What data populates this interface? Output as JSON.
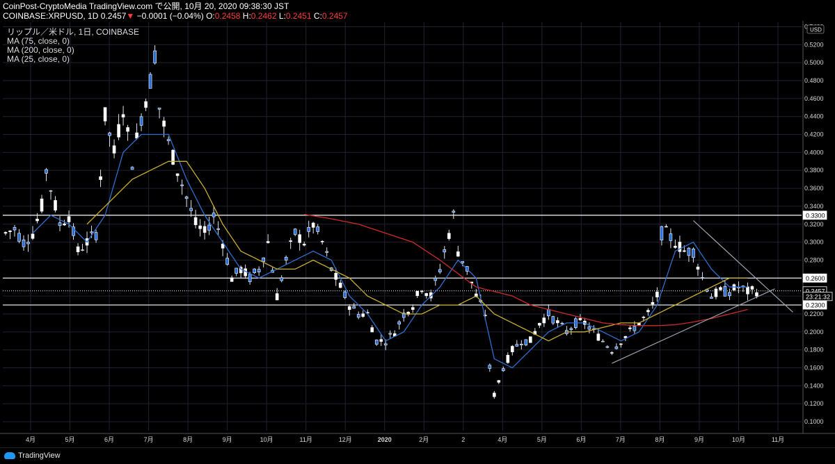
{
  "header": {
    "line1": "CoinPost-CryptoMedia TradingView.com で公開, 10月 20, 2020 09:38:30 JST",
    "symbol": "COINBASE:XRPUSD, 1D",
    "last": "0.2457",
    "arrow": "▼",
    "change": "−0.0001 (−0.04%)",
    "o_label": "O:",
    "o": "0.2458",
    "h_label": "H:",
    "h": "0.2462",
    "l_label": "L:",
    "l": "0.2451",
    "c_label": "C:",
    "c": "0.2457"
  },
  "legend": {
    "title": "リップル／米ドル, 1日, COINBASE",
    "ma75": "MA (75, close, 0)",
    "ma200": "MA (200, close, 0)",
    "ma25": "MA (25, close, 0)"
  },
  "footer": {
    "brand": "TradingView"
  },
  "colors": {
    "background": "#000000",
    "grid": "#1f2233",
    "candle": "#ffffff",
    "ma25": "#2f6fd0",
    "ma75": "#c9b030",
    "ma200": "#d02a2a",
    "trendline": "#9aa3ad",
    "hline": "#ffffff"
  },
  "chart_data": {
    "type": "candlestick",
    "currency_label": "USD",
    "y_ticks": [
      "0.5400",
      "0.5200",
      "0.5000",
      "0.4800",
      "0.4600",
      "0.4400",
      "0.4200",
      "0.4000",
      "0.3800",
      "0.3600",
      "0.3400",
      "0.3200",
      "0.3000",
      "0.2800",
      "0.2600",
      "0.2400",
      "0.2200",
      "0.2000",
      "0.1800",
      "0.1600",
      "0.1400",
      "0.1200",
      "0.1000"
    ],
    "x_labels": [
      "4月",
      "5月",
      "6月",
      "7月",
      "8月",
      "9月",
      "10月",
      "11月",
      "12月",
      "2020",
      "2月",
      "2",
      "4月",
      "5月",
      "6月",
      "7月",
      "8月",
      "9月",
      "10月",
      "11月"
    ],
    "price_labels": [
      {
        "text": "0.3300",
        "value": 0.33,
        "style": "line"
      },
      {
        "text": "0.2600",
        "value": 0.26,
        "style": "line"
      },
      {
        "text": "0.2457",
        "value": 0.2457,
        "style": "current"
      },
      {
        "text": "23:21:32",
        "value": 0.2395,
        "style": "countdown"
      },
      {
        "text": "0.2300",
        "value": 0.23,
        "style": "line"
      }
    ],
    "horizontal_lines": [
      0.33,
      0.26,
      0.23
    ],
    "ylim": [
      0.09,
      0.545
    ],
    "price_keypoints": [
      [
        0,
        0.31
      ],
      [
        2,
        0.315
      ],
      [
        4,
        0.3
      ],
      [
        6,
        0.31
      ],
      [
        8,
        0.34
      ],
      [
        9,
        0.38
      ],
      [
        10,
        0.36
      ],
      [
        12,
        0.32
      ],
      [
        14,
        0.33
      ],
      [
        16,
        0.29
      ],
      [
        18,
        0.3
      ],
      [
        20,
        0.31
      ],
      [
        22,
        0.44
      ],
      [
        24,
        0.4
      ],
      [
        26,
        0.45
      ],
      [
        28,
        0.39
      ],
      [
        30,
        0.44
      ],
      [
        32,
        0.48
      ],
      [
        33,
        0.51
      ],
      [
        34,
        0.45
      ],
      [
        36,
        0.41
      ],
      [
        38,
        0.38
      ],
      [
        40,
        0.35
      ],
      [
        42,
        0.32
      ],
      [
        44,
        0.31
      ],
      [
        46,
        0.33
      ],
      [
        48,
        0.3
      ],
      [
        50,
        0.26
      ],
      [
        52,
        0.27
      ],
      [
        54,
        0.26
      ],
      [
        56,
        0.27
      ],
      [
        58,
        0.3
      ],
      [
        60,
        0.24
      ],
      [
        62,
        0.28
      ],
      [
        64,
        0.31
      ],
      [
        66,
        0.3
      ],
      [
        68,
        0.32
      ],
      [
        70,
        0.3
      ],
      [
        72,
        0.27
      ],
      [
        74,
        0.25
      ],
      [
        76,
        0.23
      ],
      [
        78,
        0.22
      ],
      [
        80,
        0.22
      ],
      [
        82,
        0.19
      ],
      [
        84,
        0.19
      ],
      [
        86,
        0.2
      ],
      [
        88,
        0.22
      ],
      [
        90,
        0.23
      ],
      [
        92,
        0.25
      ],
      [
        94,
        0.24
      ],
      [
        96,
        0.27
      ],
      [
        98,
        0.31
      ],
      [
        99,
        0.33
      ],
      [
        100,
        0.29
      ],
      [
        102,
        0.27
      ],
      [
        104,
        0.24
      ],
      [
        106,
        0.22
      ],
      [
        107,
        0.16
      ],
      [
        108,
        0.13
      ],
      [
        110,
        0.16
      ],
      [
        112,
        0.18
      ],
      [
        114,
        0.19
      ],
      [
        116,
        0.19
      ],
      [
        118,
        0.21
      ],
      [
        120,
        0.22
      ],
      [
        122,
        0.21
      ],
      [
        124,
        0.2
      ],
      [
        126,
        0.21
      ],
      [
        128,
        0.21
      ],
      [
        130,
        0.2
      ],
      [
        132,
        0.19
      ],
      [
        134,
        0.18
      ],
      [
        136,
        0.19
      ],
      [
        138,
        0.2
      ],
      [
        140,
        0.21
      ],
      [
        142,
        0.22
      ],
      [
        144,
        0.24
      ],
      [
        145,
        0.31
      ],
      [
        146,
        0.31
      ],
      [
        148,
        0.3
      ],
      [
        150,
        0.29
      ],
      [
        152,
        0.29
      ],
      [
        154,
        0.26
      ],
      [
        156,
        0.24
      ],
      [
        158,
        0.245
      ],
      [
        160,
        0.245
      ],
      [
        162,
        0.25
      ],
      [
        164,
        0.245
      ],
      [
        166,
        0.2457
      ]
    ],
    "ma25_keypoints": [
      [
        6,
        0.31
      ],
      [
        10,
        0.33
      ],
      [
        14,
        0.32
      ],
      [
        18,
        0.3
      ],
      [
        22,
        0.33
      ],
      [
        26,
        0.4
      ],
      [
        30,
        0.42
      ],
      [
        34,
        0.42
      ],
      [
        36,
        0.42
      ],
      [
        40,
        0.37
      ],
      [
        44,
        0.33
      ],
      [
        48,
        0.3
      ],
      [
        52,
        0.27
      ],
      [
        56,
        0.26
      ],
      [
        60,
        0.27
      ],
      [
        64,
        0.28
      ],
      [
        68,
        0.29
      ],
      [
        72,
        0.28
      ],
      [
        76,
        0.24
      ],
      [
        80,
        0.22
      ],
      [
        84,
        0.19
      ],
      [
        88,
        0.2
      ],
      [
        92,
        0.23
      ],
      [
        96,
        0.25
      ],
      [
        100,
        0.28
      ],
      [
        104,
        0.26
      ],
      [
        108,
        0.17
      ],
      [
        112,
        0.16
      ],
      [
        116,
        0.18
      ],
      [
        120,
        0.2
      ],
      [
        124,
        0.21
      ],
      [
        128,
        0.21
      ],
      [
        132,
        0.2
      ],
      [
        136,
        0.19
      ],
      [
        140,
        0.2
      ],
      [
        144,
        0.23
      ],
      [
        148,
        0.29
      ],
      [
        152,
        0.3
      ],
      [
        156,
        0.27
      ],
      [
        160,
        0.25
      ],
      [
        164,
        0.25
      ]
    ],
    "ma75_keypoints": [
      [
        18,
        0.32
      ],
      [
        24,
        0.35
      ],
      [
        28,
        0.37
      ],
      [
        32,
        0.38
      ],
      [
        36,
        0.39
      ],
      [
        40,
        0.39
      ],
      [
        44,
        0.36
      ],
      [
        48,
        0.32
      ],
      [
        52,
        0.29
      ],
      [
        56,
        0.28
      ],
      [
        60,
        0.27
      ],
      [
        64,
        0.27
      ],
      [
        68,
        0.28
      ],
      [
        72,
        0.27
      ],
      [
        76,
        0.26
      ],
      [
        80,
        0.24
      ],
      [
        84,
        0.23
      ],
      [
        88,
        0.22
      ],
      [
        92,
        0.22
      ],
      [
        96,
        0.23
      ],
      [
        100,
        0.23
      ],
      [
        104,
        0.24
      ],
      [
        108,
        0.22
      ],
      [
        112,
        0.21
      ],
      [
        116,
        0.2
      ],
      [
        120,
        0.19
      ],
      [
        124,
        0.2
      ],
      [
        128,
        0.2
      ],
      [
        132,
        0.205
      ],
      [
        136,
        0.21
      ],
      [
        140,
        0.21
      ],
      [
        144,
        0.22
      ],
      [
        148,
        0.23
      ],
      [
        152,
        0.24
      ],
      [
        156,
        0.25
      ],
      [
        160,
        0.26
      ],
      [
        164,
        0.26
      ]
    ],
    "ma200_keypoints": [
      [
        66,
        0.331
      ],
      [
        72,
        0.326
      ],
      [
        78,
        0.32
      ],
      [
        84,
        0.31
      ],
      [
        90,
        0.3
      ],
      [
        96,
        0.28
      ],
      [
        100,
        0.265
      ],
      [
        104,
        0.25
      ],
      [
        108,
        0.245
      ],
      [
        112,
        0.24
      ],
      [
        116,
        0.23
      ],
      [
        120,
        0.225
      ],
      [
        124,
        0.22
      ],
      [
        128,
        0.215
      ],
      [
        132,
        0.21
      ],
      [
        136,
        0.208
      ],
      [
        140,
        0.207
      ],
      [
        144,
        0.207
      ],
      [
        148,
        0.208
      ],
      [
        152,
        0.211
      ],
      [
        156,
        0.215
      ],
      [
        160,
        0.22
      ],
      [
        164,
        0.225
      ]
    ],
    "trendlines": [
      {
        "from": [
          134,
          0.165
        ],
        "to": [
          170,
          0.248
        ]
      },
      {
        "from": [
          152,
          0.324
        ],
        "to": [
          174,
          0.222
        ]
      }
    ]
  }
}
